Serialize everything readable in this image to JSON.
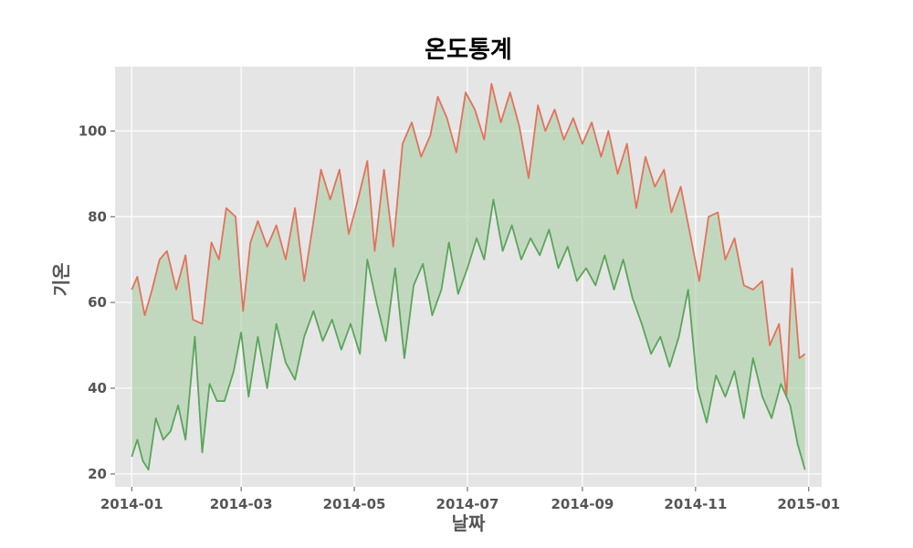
{
  "chart_data": {
    "type": "line",
    "title": "온도통계",
    "xlabel": "날짜",
    "ylabel": "기온",
    "x_range": [
      "2013-12-23",
      "2015-01-08"
    ],
    "ylim": [
      17,
      115
    ],
    "grid": true,
    "legend": "none",
    "x_ticks": [
      "2014-01",
      "2014-03",
      "2014-05",
      "2014-07",
      "2014-09",
      "2014-11",
      "2015-01"
    ],
    "y_ticks": [
      20,
      40,
      60,
      80,
      100
    ],
    "fill_between": {
      "color": "#a8cfa5",
      "description_series": [
        "high",
        "low"
      ]
    },
    "series": [
      {
        "key": "high",
        "color": "#e2725b",
        "points": [
          [
            "2014-01-01",
            63
          ],
          [
            "2014-01-04",
            66
          ],
          [
            "2014-01-08",
            57
          ],
          [
            "2014-01-12",
            63
          ],
          [
            "2014-01-16",
            70
          ],
          [
            "2014-01-20",
            72
          ],
          [
            "2014-01-25",
            63
          ],
          [
            "2014-01-30",
            71
          ],
          [
            "2014-02-03",
            56
          ],
          [
            "2014-02-08",
            55
          ],
          [
            "2014-02-13",
            74
          ],
          [
            "2014-02-17",
            70
          ],
          [
            "2014-02-21",
            82
          ],
          [
            "2014-02-26",
            80
          ],
          [
            "2014-03-02",
            58
          ],
          [
            "2014-03-06",
            74
          ],
          [
            "2014-03-10",
            79
          ],
          [
            "2014-03-15",
            73
          ],
          [
            "2014-03-20",
            78
          ],
          [
            "2014-03-25",
            70
          ],
          [
            "2014-03-30",
            82
          ],
          [
            "2014-04-04",
            65
          ],
          [
            "2014-04-09",
            79
          ],
          [
            "2014-04-13",
            91
          ],
          [
            "2014-04-18",
            84
          ],
          [
            "2014-04-23",
            91
          ],
          [
            "2014-04-28",
            76
          ],
          [
            "2014-05-03",
            84
          ],
          [
            "2014-05-08",
            93
          ],
          [
            "2014-05-12",
            72
          ],
          [
            "2014-05-17",
            91
          ],
          [
            "2014-05-22",
            73
          ],
          [
            "2014-05-27",
            97
          ],
          [
            "2014-06-01",
            102
          ],
          [
            "2014-06-06",
            94
          ],
          [
            "2014-06-11",
            99
          ],
          [
            "2014-06-15",
            108
          ],
          [
            "2014-06-20",
            103
          ],
          [
            "2014-06-25",
            95
          ],
          [
            "2014-06-30",
            109
          ],
          [
            "2014-07-05",
            105
          ],
          [
            "2014-07-10",
            98
          ],
          [
            "2014-07-14",
            111
          ],
          [
            "2014-07-19",
            102
          ],
          [
            "2014-07-24",
            109
          ],
          [
            "2014-07-29",
            101
          ],
          [
            "2014-08-03",
            89
          ],
          [
            "2014-08-08",
            106
          ],
          [
            "2014-08-12",
            100
          ],
          [
            "2014-08-17",
            105
          ],
          [
            "2014-08-22",
            98
          ],
          [
            "2014-08-27",
            103
          ],
          [
            "2014-09-01",
            97
          ],
          [
            "2014-09-06",
            102
          ],
          [
            "2014-09-11",
            94
          ],
          [
            "2014-09-15",
            100
          ],
          [
            "2014-09-20",
            90
          ],
          [
            "2014-09-25",
            97
          ],
          [
            "2014-09-30",
            82
          ],
          [
            "2014-10-05",
            94
          ],
          [
            "2014-10-10",
            87
          ],
          [
            "2014-10-15",
            91
          ],
          [
            "2014-10-19",
            81
          ],
          [
            "2014-10-24",
            87
          ],
          [
            "2014-10-29",
            76
          ],
          [
            "2014-11-03",
            65
          ],
          [
            "2014-11-08",
            80
          ],
          [
            "2014-11-13",
            81
          ],
          [
            "2014-11-17",
            70
          ],
          [
            "2014-11-22",
            75
          ],
          [
            "2014-11-27",
            64
          ],
          [
            "2014-12-02",
            63
          ],
          [
            "2014-12-07",
            65
          ],
          [
            "2014-12-11",
            50
          ],
          [
            "2014-12-16",
            55
          ],
          [
            "2014-12-20",
            38
          ],
          [
            "2014-12-23",
            68
          ],
          [
            "2014-12-27",
            47
          ],
          [
            "2014-12-30",
            48
          ]
        ]
      },
      {
        "key": "low",
        "color": "#5aa55a",
        "points": [
          [
            "2014-01-01",
            24
          ],
          [
            "2014-01-04",
            28
          ],
          [
            "2014-01-07",
            23
          ],
          [
            "2014-01-10",
            21
          ],
          [
            "2014-01-14",
            33
          ],
          [
            "2014-01-18",
            28
          ],
          [
            "2014-01-22",
            30
          ],
          [
            "2014-01-26",
            36
          ],
          [
            "2014-01-30",
            28
          ],
          [
            "2014-02-04",
            52
          ],
          [
            "2014-02-08",
            25
          ],
          [
            "2014-02-12",
            41
          ],
          [
            "2014-02-16",
            37
          ],
          [
            "2014-02-20",
            37
          ],
          [
            "2014-02-25",
            44
          ],
          [
            "2014-03-01",
            53
          ],
          [
            "2014-03-05",
            38
          ],
          [
            "2014-03-10",
            52
          ],
          [
            "2014-03-15",
            40
          ],
          [
            "2014-03-20",
            55
          ],
          [
            "2014-03-25",
            46
          ],
          [
            "2014-03-30",
            42
          ],
          [
            "2014-04-04",
            52
          ],
          [
            "2014-04-09",
            58
          ],
          [
            "2014-04-14",
            51
          ],
          [
            "2014-04-19",
            56
          ],
          [
            "2014-04-24",
            49
          ],
          [
            "2014-04-29",
            55
          ],
          [
            "2014-05-04",
            48
          ],
          [
            "2014-05-08",
            70
          ],
          [
            "2014-05-13",
            60
          ],
          [
            "2014-05-18",
            51
          ],
          [
            "2014-05-23",
            68
          ],
          [
            "2014-05-28",
            47
          ],
          [
            "2014-06-02",
            64
          ],
          [
            "2014-06-07",
            69
          ],
          [
            "2014-06-12",
            57
          ],
          [
            "2014-06-17",
            63
          ],
          [
            "2014-06-21",
            74
          ],
          [
            "2014-06-26",
            62
          ],
          [
            "2014-07-01",
            68
          ],
          [
            "2014-07-06",
            75
          ],
          [
            "2014-07-10",
            70
          ],
          [
            "2014-07-15",
            84
          ],
          [
            "2014-07-20",
            72
          ],
          [
            "2014-07-25",
            78
          ],
          [
            "2014-07-30",
            70
          ],
          [
            "2014-08-04",
            75
          ],
          [
            "2014-08-09",
            71
          ],
          [
            "2014-08-14",
            77
          ],
          [
            "2014-08-19",
            68
          ],
          [
            "2014-08-24",
            73
          ],
          [
            "2014-08-29",
            65
          ],
          [
            "2014-09-03",
            68
          ],
          [
            "2014-09-08",
            64
          ],
          [
            "2014-09-13",
            71
          ],
          [
            "2014-09-18",
            63
          ],
          [
            "2014-09-23",
            70
          ],
          [
            "2014-09-28",
            61
          ],
          [
            "2014-10-03",
            55
          ],
          [
            "2014-10-08",
            48
          ],
          [
            "2014-10-13",
            52
          ],
          [
            "2014-10-18",
            45
          ],
          [
            "2014-10-23",
            52
          ],
          [
            "2014-10-28",
            63
          ],
          [
            "2014-11-02",
            40
          ],
          [
            "2014-11-07",
            32
          ],
          [
            "2014-11-12",
            43
          ],
          [
            "2014-11-17",
            38
          ],
          [
            "2014-11-22",
            44
          ],
          [
            "2014-11-27",
            33
          ],
          [
            "2014-12-02",
            47
          ],
          [
            "2014-12-07",
            38
          ],
          [
            "2014-12-12",
            33
          ],
          [
            "2014-12-17",
            41
          ],
          [
            "2014-12-22",
            36
          ],
          [
            "2014-12-26",
            27
          ],
          [
            "2014-12-30",
            21
          ]
        ]
      }
    ]
  }
}
